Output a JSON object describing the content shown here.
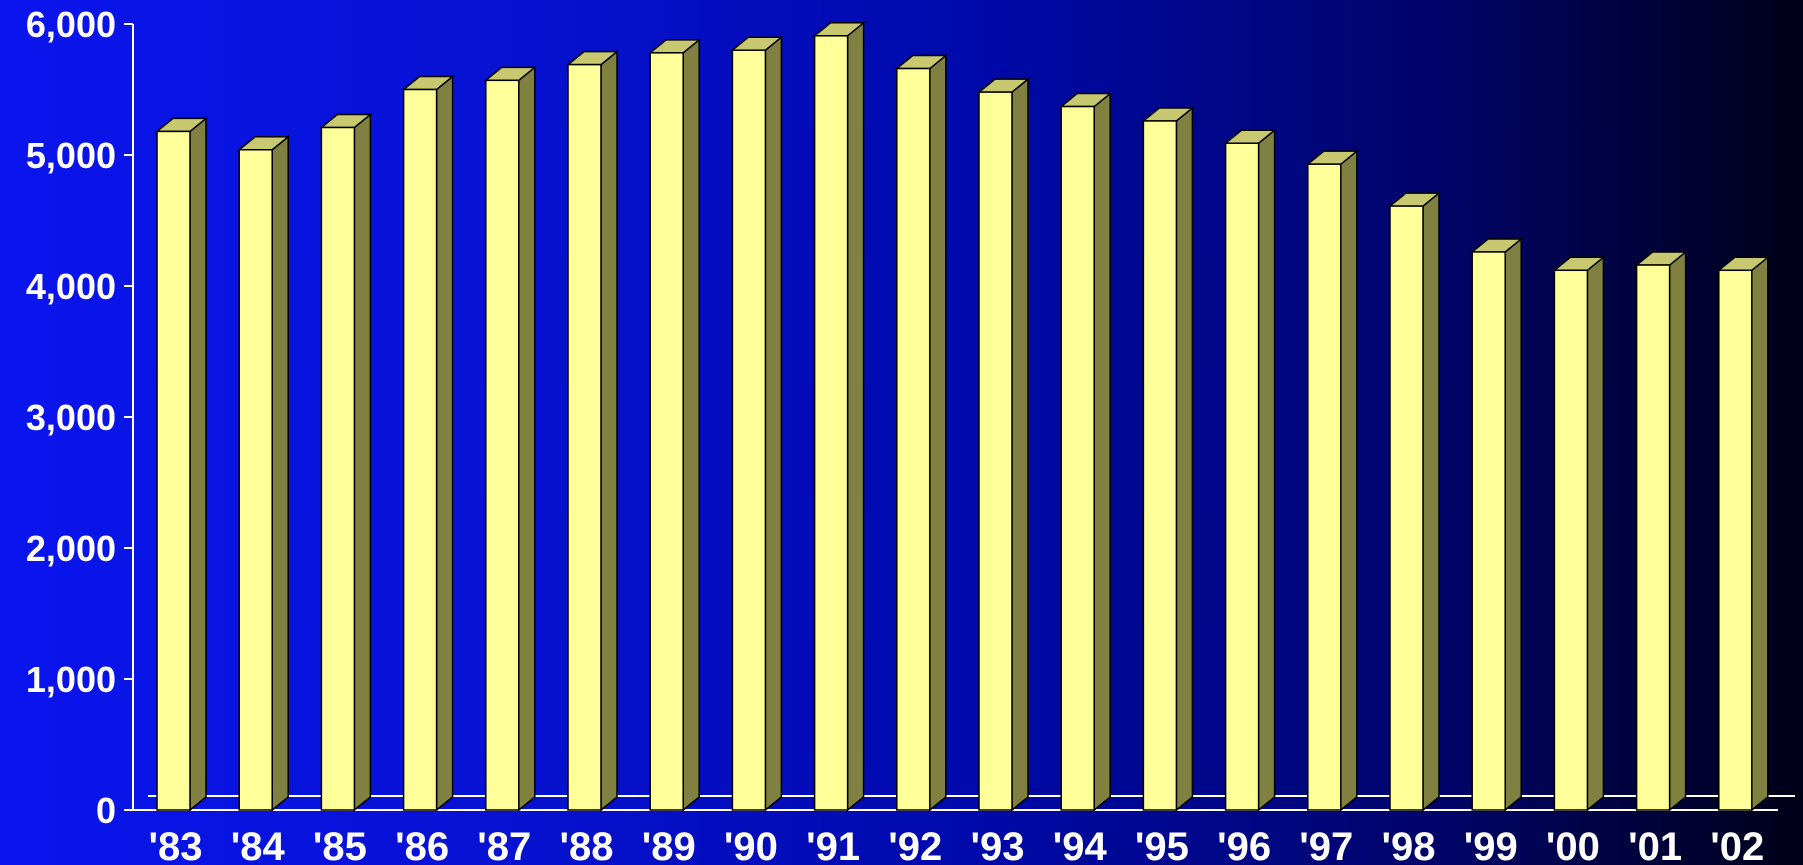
{
  "chart_data": {
    "type": "bar",
    "categories": [
      "'83",
      "'84",
      "'85",
      "'86",
      "'87",
      "'88",
      "'89",
      "'90",
      "'91",
      "'92",
      "'93",
      "'94",
      "'95",
      "'96",
      "'97",
      "'98",
      "'99",
      "'00",
      "'01",
      "'02"
    ],
    "values": [
      5180,
      5040,
      5210,
      5500,
      5570,
      5690,
      5780,
      5800,
      5910,
      5660,
      5480,
      5370,
      5260,
      5090,
      4930,
      4610,
      4260,
      4120,
      4160,
      4120
    ],
    "ylim": [
      0,
      6000
    ],
    "yticks": [
      0,
      1000,
      2000,
      3000,
      4000,
      5000,
      6000
    ],
    "ytick_labels": [
      "0",
      "1,000",
      "2,000",
      "3,000",
      "4,000",
      "5,000",
      "6,000"
    ],
    "title": "",
    "xlabel": "",
    "ylabel": "",
    "legend": "none",
    "grid": false,
    "colors": {
      "bar_front": "#ffff99",
      "bar_side": "#808040",
      "bar_top": "#c8c870",
      "axis": "#ffffff",
      "outline": "#000000"
    }
  }
}
